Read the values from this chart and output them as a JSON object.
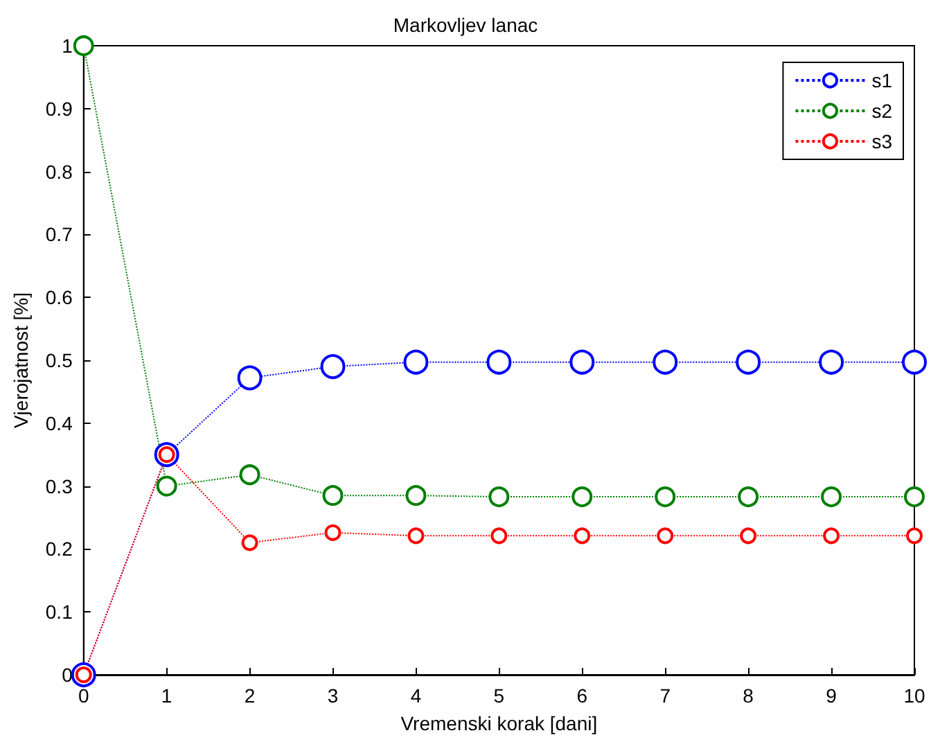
{
  "chart_data": {
    "type": "line",
    "title": "Markovljev lanac",
    "xlabel": "Vremenski korak [dani]",
    "ylabel": "Vjerojatnost [%]",
    "x": [
      0,
      1,
      2,
      3,
      4,
      5,
      6,
      7,
      8,
      9,
      10
    ],
    "series": [
      {
        "name": "s1",
        "color": "#0000ff",
        "values": [
          0,
          0.35,
          0.472,
          0.49,
          0.497,
          0.497,
          0.497,
          0.497,
          0.497,
          0.497,
          0.497
        ]
      },
      {
        "name": "s2",
        "color": "#008000",
        "values": [
          1,
          0.3,
          0.318,
          0.285,
          0.285,
          0.283,
          0.283,
          0.283,
          0.283,
          0.283,
          0.283
        ]
      },
      {
        "name": "s3",
        "color": "#ff0000",
        "values": [
          0,
          0.35,
          0.21,
          0.226,
          0.221,
          0.221,
          0.221,
          0.221,
          0.221,
          0.221,
          0.221
        ]
      }
    ],
    "xlim": [
      0,
      10
    ],
    "xticks": [
      0,
      1,
      2,
      3,
      4,
      5,
      6,
      7,
      8,
      9,
      10
    ],
    "ylim": [
      0,
      1
    ],
    "yticks": [
      0,
      0.1,
      0.2,
      0.3,
      0.4,
      0.5,
      0.6,
      0.7,
      0.8,
      0.9,
      1
    ],
    "grid": false,
    "legend": "top right",
    "marker": "circle",
    "line_style": "dotted"
  }
}
